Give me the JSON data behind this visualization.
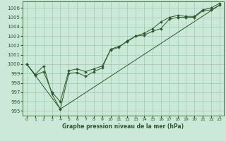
{
  "xlabel": "Graphe pression niveau de la mer (hPa)",
  "background_color": "#cce8d8",
  "grid_color": "#99ccb0",
  "line_color": "#2d5a2d",
  "xlim": [
    -0.5,
    23.5
  ],
  "ylim": [
    994.5,
    1006.7
  ],
  "yticks": [
    995,
    996,
    997,
    998,
    999,
    1000,
    1001,
    1002,
    1003,
    1004,
    1005,
    1006
  ],
  "xticks": [
    0,
    1,
    2,
    3,
    4,
    5,
    6,
    7,
    8,
    9,
    10,
    11,
    12,
    13,
    14,
    15,
    16,
    17,
    18,
    19,
    20,
    21,
    22,
    23
  ],
  "series1_x": [
    0,
    1,
    2,
    3,
    4,
    5,
    6,
    7,
    8,
    9,
    10,
    11,
    12,
    13,
    14,
    15,
    16,
    17,
    18,
    19,
    20,
    21,
    22,
    23
  ],
  "series1_y": [
    1000.0,
    998.8,
    999.2,
    997.0,
    996.0,
    999.3,
    999.5,
    999.2,
    999.5,
    999.8,
    1001.5,
    1001.8,
    1002.5,
    1003.0,
    1003.1,
    1003.5,
    1003.8,
    1004.8,
    1005.0,
    1005.0,
    1005.0,
    1005.7,
    1005.8,
    1006.3
  ],
  "series2_x": [
    0,
    1,
    2,
    3,
    4,
    5,
    6,
    7,
    8,
    9,
    10,
    11,
    12,
    13,
    14,
    15,
    16,
    17,
    18,
    19,
    20,
    21,
    22,
    23
  ],
  "series2_y": [
    1000.0,
    998.9,
    999.8,
    996.8,
    995.2,
    999.0,
    999.1,
    998.7,
    999.2,
    999.6,
    1001.6,
    1001.9,
    1002.4,
    1003.0,
    1003.3,
    1003.8,
    1004.5,
    1005.0,
    1005.2,
    1005.1,
    1005.1,
    1005.8,
    1006.0,
    1006.5
  ],
  "series3_x": [
    0,
    4,
    23
  ],
  "series3_y": [
    1000.0,
    995.2,
    1006.3
  ]
}
